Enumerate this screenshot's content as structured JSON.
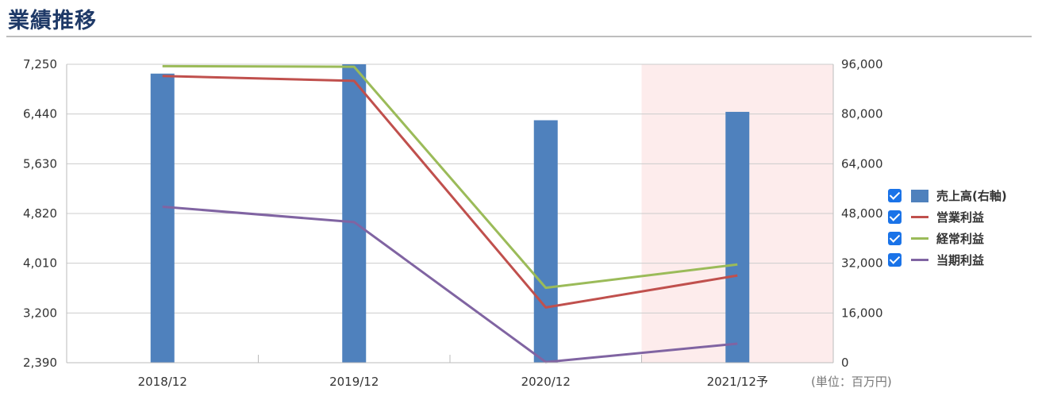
{
  "header": {
    "title": "業績推移"
  },
  "unit_note": "(単位：百万円)",
  "colors": {
    "bar": "#4f81bd",
    "operating": "#c0504d",
    "ordinary": "#9bbb59",
    "net": "#8064a2",
    "forecast_band": "#fdecec",
    "grid": "#cccccc",
    "checkbox": "#1a73e8"
  },
  "legend": [
    {
      "label": "売上高(右軸)",
      "kind": "bar",
      "color": "#4f81bd"
    },
    {
      "label": "営業利益",
      "kind": "line",
      "color": "#c0504d"
    },
    {
      "label": "経常利益",
      "kind": "line",
      "color": "#9bbb59"
    },
    {
      "label": "当期利益",
      "kind": "line",
      "color": "#8064a2"
    }
  ],
  "chart_data": {
    "type": "bar+line",
    "categories": [
      "2018/12",
      "2019/12",
      "2020/12",
      "2021/12予"
    ],
    "forecast_category_index": 3,
    "y_left": {
      "ticks": [
        "7,250",
        "6,440",
        "5,630",
        "4,820",
        "4,010",
        "3,200",
        "2,390"
      ],
      "range": [
        2390,
        7250
      ]
    },
    "y_right": {
      "ticks": [
        "96,000",
        "80,000",
        "64,000",
        "48,000",
        "32,000",
        "16,000",
        "0"
      ],
      "range": [
        0,
        96000
      ]
    },
    "grid": true,
    "legend_position": "right",
    "series": [
      {
        "name": "売上高(右軸)",
        "type": "bar",
        "axis": "right",
        "values": [
          93000,
          96000,
          78000,
          80700
        ]
      },
      {
        "name": "営業利益",
        "type": "line",
        "axis": "left",
        "values": [
          7060,
          6980,
          3290,
          3810
        ]
      },
      {
        "name": "経常利益",
        "type": "line",
        "axis": "left",
        "values": [
          7220,
          7210,
          3610,
          3990
        ]
      },
      {
        "name": "当期利益",
        "type": "line",
        "axis": "left",
        "values": [
          4930,
          4680,
          2400,
          2700
        ]
      }
    ]
  }
}
